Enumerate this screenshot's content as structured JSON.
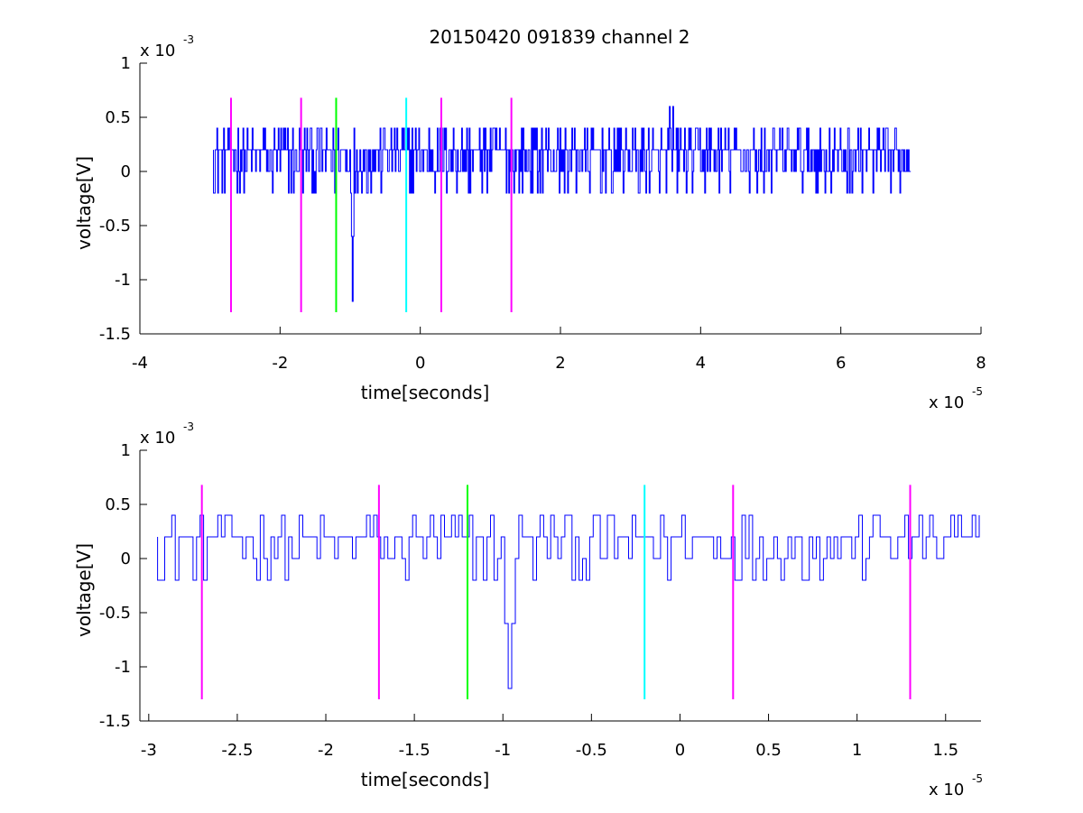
{
  "chart_data": [
    {
      "type": "line",
      "title": "20150420 091839 channel 2",
      "xlabel": "time[seconds]",
      "ylabel": "voltage[V]",
      "x_multiplier": "x 10",
      "x_exponent": "-5",
      "y_multiplier": "x 10",
      "y_exponent": "-3",
      "xlim": [
        -4,
        8
      ],
      "ylim": [
        -1.5,
        1
      ],
      "xticks": [
        -4,
        -2,
        0,
        2,
        4,
        6,
        8
      ],
      "xtick_labels": [
        "-4",
        "-2",
        "0",
        "2",
        "4",
        "6",
        "8"
      ],
      "yticks": [
        -1.5,
        -1,
        -0.5,
        0,
        0.5,
        1
      ],
      "ytick_labels": [
        "-1.5",
        "-1",
        "-0.5",
        "0",
        "0.5",
        "1"
      ],
      "grid": false,
      "noise_signal": {
        "name": "voltage",
        "color": "#0000ff",
        "x_range": [
          -2.95,
          7.0
        ],
        "levels": [
          -0.2,
          0,
          0.2,
          0.4
        ],
        "spike": {
          "x": -0.97,
          "y": -1.2
        },
        "peaks": [
          {
            "x": 3.55,
            "y": 0.6
          },
          {
            "x": 3.6,
            "y": 0.6
          }
        ]
      },
      "markers": [
        {
          "x": -2.7,
          "color": "#ff00ff",
          "y_from": -1.3,
          "y_to": 0.68
        },
        {
          "x": -1.7,
          "color": "#ff00ff",
          "y_from": -1.3,
          "y_to": 0.68
        },
        {
          "x": -1.2,
          "color": "#00ff00",
          "y_from": -1.3,
          "y_to": 0.68
        },
        {
          "x": -0.2,
          "color": "#00ffff",
          "y_from": -1.3,
          "y_to": 0.68
        },
        {
          "x": 0.3,
          "color": "#ff00ff",
          "y_from": -1.3,
          "y_to": 0.68
        },
        {
          "x": 1.3,
          "color": "#ff00ff",
          "y_from": -1.3,
          "y_to": 0.68
        }
      ]
    },
    {
      "type": "line",
      "title": "",
      "xlabel": "time[seconds]",
      "ylabel": "voltage[V]",
      "x_multiplier": "x 10",
      "x_exponent": "-5",
      "y_multiplier": "x 10",
      "y_exponent": "-3",
      "xlim": [
        -3.05,
        1.7
      ],
      "ylim": [
        -1.5,
        1
      ],
      "xticks": [
        -3,
        -2.5,
        -2,
        -1.5,
        -1,
        -0.5,
        0,
        0.5,
        1,
        1.5
      ],
      "xtick_labels": [
        "-3",
        "-2.5",
        "-2",
        "-1.5",
        "-1",
        "-0.5",
        "0",
        "0.5",
        "1",
        "1.5"
      ],
      "yticks": [
        -1.5,
        -1,
        -0.5,
        0,
        0.5,
        1
      ],
      "ytick_labels": [
        "-1.5",
        "-1",
        "-0.5",
        "0",
        "0.5",
        "1"
      ],
      "grid": false,
      "noise_signal": {
        "name": "voltage",
        "color": "#0000ff",
        "x_range": [
          -2.95,
          1.7
        ],
        "levels": [
          -0.2,
          0,
          0.2,
          0.4
        ],
        "spike": {
          "x": -0.97,
          "y": -1.2
        },
        "peaks": []
      },
      "markers": [
        {
          "x": -2.7,
          "color": "#ff00ff",
          "y_from": -1.3,
          "y_to": 0.68
        },
        {
          "x": -1.7,
          "color": "#ff00ff",
          "y_from": -1.3,
          "y_to": 0.68
        },
        {
          "x": -1.2,
          "color": "#00ff00",
          "y_from": -1.3,
          "y_to": 0.68
        },
        {
          "x": -0.2,
          "color": "#00ffff",
          "y_from": -1.3,
          "y_to": 0.68
        },
        {
          "x": 0.3,
          "color": "#ff00ff",
          "y_from": -1.3,
          "y_to": 0.68
        },
        {
          "x": 1.3,
          "color": "#ff00ff",
          "y_from": -1.3,
          "y_to": 0.68
        }
      ]
    }
  ]
}
